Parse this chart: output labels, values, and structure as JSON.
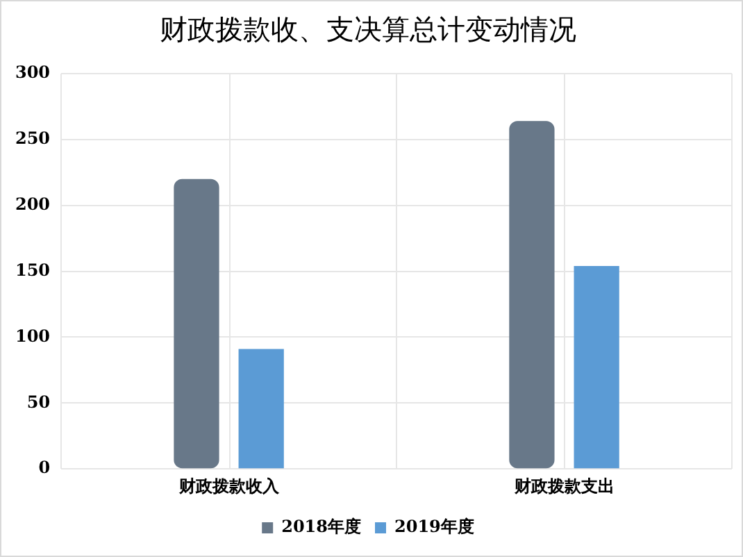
{
  "chart_data": {
    "type": "bar",
    "title": "财政拨款收、支决算总计变动情况",
    "categories": [
      "财政拨款收入",
      "财政拨款支出"
    ],
    "series": [
      {
        "name": "2018年度",
        "color": "#687889",
        "values": [
          220,
          264
        ]
      },
      {
        "name": "2019年度",
        "color": "#5b9bd5",
        "values": [
          91,
          154
        ]
      }
    ],
    "ylim": [
      0,
      300
    ],
    "yticks": [
      0,
      50,
      100,
      150,
      200,
      250,
      300
    ],
    "grid": true,
    "legend": "bottom"
  }
}
